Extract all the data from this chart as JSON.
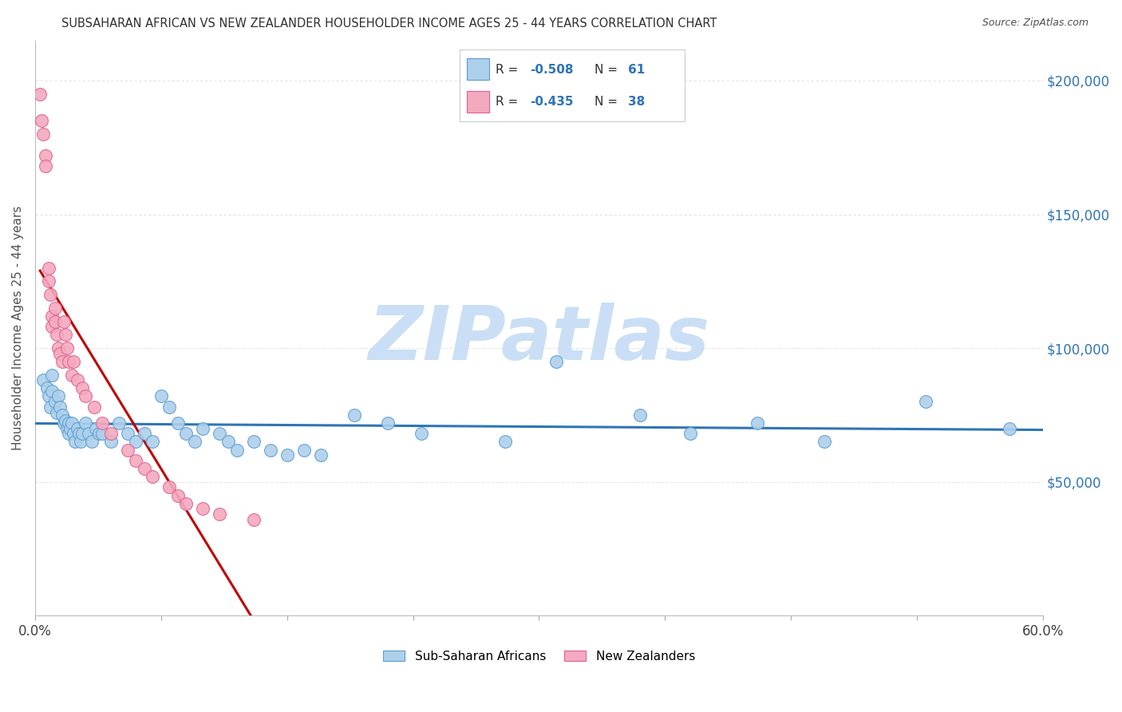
{
  "title": "SUBSAHARAN AFRICAN VS NEW ZEALANDER HOUSEHOLDER INCOME AGES 25 - 44 YEARS CORRELATION CHART",
  "source": "Source: ZipAtlas.com",
  "ylabel": "Householder Income Ages 25 - 44 years",
  "xlim": [
    0,
    0.6
  ],
  "ylim": [
    0,
    215000
  ],
  "xtick_positions": [
    0.0,
    0.075,
    0.15,
    0.225,
    0.3,
    0.375,
    0.45,
    0.525,
    0.6
  ],
  "xticklabels_show": {
    "0.0": "0.0%",
    "0.60": "60.0%"
  },
  "yticks_right": [
    50000,
    100000,
    150000,
    200000
  ],
  "ytick_right_labels": [
    "$50,000",
    "$100,000",
    "$150,000",
    "$200,000"
  ],
  "blue_R": "-0.508",
  "blue_N": "61",
  "pink_R": "-0.435",
  "pink_N": "38",
  "blue_color": "#ADD0EA",
  "pink_color": "#F4AABE",
  "blue_edge_color": "#5B9BD5",
  "pink_edge_color": "#E06090",
  "blue_line_color": "#2E75B6",
  "pink_line_color": "#C00000",
  "pink_dash_color": "#E8A0B0",
  "watermark": "ZIPatlas",
  "watermark_color": "#CADFF5",
  "legend_val_color": "#2E75B6",
  "grid_color": "#E8E8E8",
  "blue_scatter_x": [
    0.005,
    0.007,
    0.008,
    0.009,
    0.01,
    0.01,
    0.012,
    0.013,
    0.014,
    0.015,
    0.016,
    0.017,
    0.018,
    0.019,
    0.02,
    0.02,
    0.021,
    0.022,
    0.023,
    0.024,
    0.025,
    0.026,
    0.027,
    0.028,
    0.03,
    0.032,
    0.034,
    0.036,
    0.038,
    0.04,
    0.045,
    0.05,
    0.055,
    0.06,
    0.065,
    0.07,
    0.075,
    0.08,
    0.085,
    0.09,
    0.095,
    0.1,
    0.11,
    0.115,
    0.12,
    0.13,
    0.14,
    0.15,
    0.16,
    0.17,
    0.19,
    0.21,
    0.23,
    0.28,
    0.31,
    0.36,
    0.39,
    0.43,
    0.47,
    0.53,
    0.58
  ],
  "blue_scatter_y": [
    88000,
    85000,
    82000,
    78000,
    90000,
    84000,
    80000,
    76000,
    82000,
    78000,
    75000,
    72000,
    73000,
    70000,
    72000,
    68000,
    70000,
    72000,
    68000,
    65000,
    70000,
    68000,
    65000,
    68000,
    72000,
    68000,
    65000,
    70000,
    68000,
    68000,
    65000,
    72000,
    68000,
    65000,
    68000,
    65000,
    82000,
    78000,
    72000,
    68000,
    65000,
    70000,
    68000,
    65000,
    62000,
    65000,
    62000,
    60000,
    62000,
    60000,
    75000,
    72000,
    68000,
    65000,
    95000,
    75000,
    68000,
    72000,
    65000,
    80000,
    70000
  ],
  "pink_scatter_x": [
    0.003,
    0.004,
    0.005,
    0.006,
    0.006,
    0.008,
    0.008,
    0.009,
    0.01,
    0.01,
    0.012,
    0.012,
    0.013,
    0.014,
    0.015,
    0.016,
    0.017,
    0.018,
    0.019,
    0.02,
    0.022,
    0.023,
    0.025,
    0.028,
    0.03,
    0.035,
    0.04,
    0.045,
    0.055,
    0.06,
    0.065,
    0.07,
    0.08,
    0.085,
    0.09,
    0.1,
    0.11,
    0.13
  ],
  "pink_scatter_y": [
    195000,
    185000,
    180000,
    172000,
    168000,
    130000,
    125000,
    120000,
    112000,
    108000,
    115000,
    110000,
    105000,
    100000,
    98000,
    95000,
    110000,
    105000,
    100000,
    95000,
    90000,
    95000,
    88000,
    85000,
    82000,
    78000,
    72000,
    68000,
    62000,
    58000,
    55000,
    52000,
    48000,
    45000,
    42000,
    40000,
    38000,
    36000
  ]
}
